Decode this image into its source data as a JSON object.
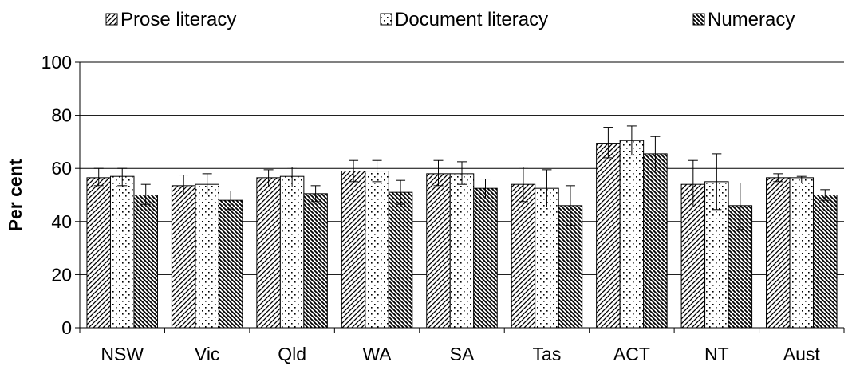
{
  "chart_data": {
    "type": "bar",
    "title": "",
    "xlabel": "",
    "ylabel": "Per cent",
    "ylim": [
      0,
      100
    ],
    "yticks": [
      0,
      20,
      40,
      60,
      80,
      100
    ],
    "grid": true,
    "legend_position": "top",
    "categories": [
      "NSW",
      "Vic",
      "Qld",
      "WA",
      "SA",
      "Tas",
      "ACT",
      "NT",
      "Aust"
    ],
    "series": [
      {
        "name": "Prose literacy",
        "pattern": "diagonal-up",
        "values": [
          56.5,
          53.5,
          56.5,
          59,
          58,
          54,
          69.5,
          54,
          56.5
        ],
        "error_low": [
          53.5,
          50,
          53,
          55,
          53.5,
          47.5,
          64,
          45.5,
          55
        ],
        "error_high": [
          60,
          57.5,
          59.5,
          63,
          63,
          60.5,
          75.5,
          63,
          58
        ]
      },
      {
        "name": "Document literacy",
        "pattern": "dots",
        "values": [
          57,
          54,
          57,
          59,
          58,
          52.5,
          70.5,
          55,
          56.5
        ],
        "error_low": [
          53.5,
          50,
          53,
          55,
          54,
          45.5,
          65,
          44.5,
          54.5
        ],
        "error_high": [
          60,
          58,
          60.5,
          63,
          62.5,
          59.5,
          76,
          65.5,
          57
        ]
      },
      {
        "name": "Numeracy",
        "pattern": "diagonal-down",
        "values": [
          50,
          48,
          50.5,
          51,
          52.5,
          46,
          65.5,
          46,
          50
        ],
        "error_low": [
          46.5,
          44.5,
          47.5,
          46.5,
          48.5,
          38.5,
          59,
          37,
          48
        ],
        "error_high": [
          54,
          51.5,
          53.5,
          55.5,
          56,
          53.5,
          72,
          54.5,
          52
        ]
      }
    ]
  }
}
